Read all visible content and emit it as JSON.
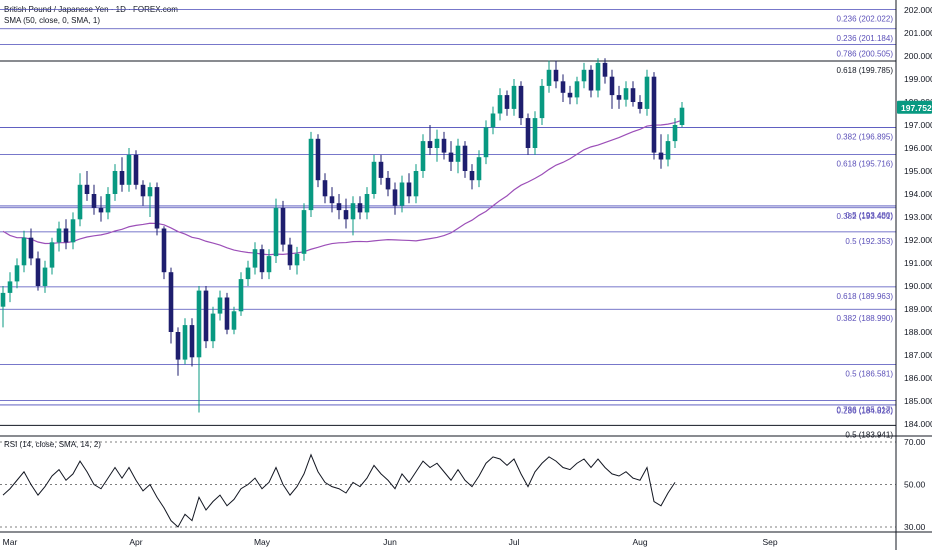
{
  "header": {
    "title": "British Pound / Japanese Yen · 1D · FOREX.com",
    "indicator": "SMA (50, close, 0, SMA, 1)",
    "rsi_label": "RSI (14, close, SMA, 14, 2)"
  },
  "colors": {
    "up": "#089981",
    "down": "#1e1e6e",
    "sma": "#9c4fb8",
    "fib_line": "#4a4ab8",
    "rsi": "#131722",
    "last_price_bg": "#089981",
    "axis_text": "#131722"
  },
  "chart_data": [
    {
      "type": "candlestick",
      "series": [
        {
          "name": "British Pound / Japanese Yen"
        }
      ],
      "price_axis": {
        "ticks": [
          "202.000",
          "201.000",
          "200.000",
          "199.000",
          "198.000",
          "197.000",
          "196.000",
          "195.000",
          "194.000",
          "193.000",
          "192.000",
          "191.000",
          "190.000",
          "189.000",
          "188.000",
          "187.000",
          "186.000",
          "185.000",
          "184.000"
        ],
        "ylim": [
          183.7,
          202.2
        ]
      },
      "time_axis": {
        "ticks": [
          "Mar",
          "Apr",
          "May",
          "Jun",
          "Jul",
          "Aug",
          "Sep"
        ]
      },
      "last_price": "197.752",
      "last_value": 197.752,
      "levels": [
        {
          "label": "0.236 (202.022)",
          "value": 202.022
        },
        {
          "label": "0.236 (201.184)",
          "value": 201.184
        },
        {
          "label": "0.786 (200.505)",
          "value": 200.505
        },
        {
          "label": "0.618 (199.785)",
          "value": 199.785,
          "dark": true
        },
        {
          "label": "0.382 (196.895)",
          "value": 196.895
        },
        {
          "label": "0.618 (195.716)",
          "value": 195.716
        },
        {
          "label": "0.5 (193.480)",
          "value": 193.48
        },
        {
          "label": "0.382 (193.401)",
          "value": 193.401
        },
        {
          "label": "0.5 (192.353)",
          "value": 192.353
        },
        {
          "label": "0.618 (189.963)",
          "value": 189.963
        },
        {
          "label": "0.382 (188.990)",
          "value": 188.99
        },
        {
          "label": "0.5 (186.581)",
          "value": 186.581
        },
        {
          "label": "0.786 (185.017)",
          "value": 185.017
        },
        {
          "label": "0.236 (184.828)",
          "value": 184.828
        },
        {
          "label": "0.5 (183.941)",
          "value": 183.941,
          "dark": true
        }
      ],
      "candles": [
        {
          "o": 189.1,
          "h": 190.0,
          "l": 188.2,
          "c": 189.7
        },
        {
          "o": 189.7,
          "h": 190.6,
          "l": 189.3,
          "c": 190.2
        },
        {
          "o": 190.2,
          "h": 191.2,
          "l": 189.9,
          "c": 190.9
        },
        {
          "o": 190.9,
          "h": 192.4,
          "l": 190.6,
          "c": 192.1
        },
        {
          "o": 192.1,
          "h": 192.5,
          "l": 190.9,
          "c": 191.2
        },
        {
          "o": 191.2,
          "h": 191.5,
          "l": 189.8,
          "c": 190.0
        },
        {
          "o": 190.0,
          "h": 191.1,
          "l": 189.7,
          "c": 190.8
        },
        {
          "o": 190.8,
          "h": 192.1,
          "l": 190.5,
          "c": 191.9
        },
        {
          "o": 191.9,
          "h": 192.8,
          "l": 191.5,
          "c": 192.5
        },
        {
          "o": 192.5,
          "h": 192.9,
          "l": 191.6,
          "c": 191.9
        },
        {
          "o": 191.9,
          "h": 193.2,
          "l": 191.6,
          "c": 192.9
        },
        {
          "o": 192.9,
          "h": 194.9,
          "l": 192.6,
          "c": 194.4
        },
        {
          "o": 194.4,
          "h": 195.0,
          "l": 193.7,
          "c": 194.0
        },
        {
          "o": 194.0,
          "h": 194.4,
          "l": 193.1,
          "c": 193.4
        },
        {
          "o": 193.4,
          "h": 193.9,
          "l": 192.8,
          "c": 193.2
        },
        {
          "o": 193.2,
          "h": 194.3,
          "l": 192.9,
          "c": 194.0
        },
        {
          "o": 194.0,
          "h": 195.3,
          "l": 193.7,
          "c": 195.0
        },
        {
          "o": 195.0,
          "h": 195.6,
          "l": 194.1,
          "c": 194.4
        },
        {
          "o": 194.4,
          "h": 196.0,
          "l": 194.1,
          "c": 195.7
        },
        {
          "o": 195.7,
          "h": 195.9,
          "l": 194.2,
          "c": 194.4
        },
        {
          "o": 194.4,
          "h": 194.6,
          "l": 193.5,
          "c": 193.9
        },
        {
          "o": 193.9,
          "h": 194.5,
          "l": 193.0,
          "c": 194.3
        },
        {
          "o": 194.3,
          "h": 194.5,
          "l": 192.2,
          "c": 192.5
        },
        {
          "o": 192.5,
          "h": 192.6,
          "l": 190.3,
          "c": 190.6
        },
        {
          "o": 190.6,
          "h": 190.8,
          "l": 187.5,
          "c": 188.0
        },
        {
          "o": 188.0,
          "h": 188.2,
          "l": 186.1,
          "c": 186.8
        },
        {
          "o": 186.8,
          "h": 188.6,
          "l": 186.6,
          "c": 188.3
        },
        {
          "o": 188.3,
          "h": 188.6,
          "l": 186.5,
          "c": 186.9
        },
        {
          "o": 186.9,
          "h": 190.0,
          "l": 184.5,
          "c": 189.8
        },
        {
          "o": 189.8,
          "h": 190.0,
          "l": 187.3,
          "c": 187.6
        },
        {
          "o": 187.6,
          "h": 189.1,
          "l": 187.3,
          "c": 188.8
        },
        {
          "o": 188.8,
          "h": 189.8,
          "l": 188.5,
          "c": 189.5
        },
        {
          "o": 189.5,
          "h": 189.7,
          "l": 187.9,
          "c": 188.1
        },
        {
          "o": 188.1,
          "h": 189.1,
          "l": 187.9,
          "c": 188.9
        },
        {
          "o": 188.9,
          "h": 190.6,
          "l": 188.7,
          "c": 190.3
        },
        {
          "o": 190.3,
          "h": 191.1,
          "l": 190.0,
          "c": 190.8
        },
        {
          "o": 190.8,
          "h": 191.9,
          "l": 190.5,
          "c": 191.6
        },
        {
          "o": 191.6,
          "h": 191.8,
          "l": 190.3,
          "c": 190.6
        },
        {
          "o": 190.6,
          "h": 191.6,
          "l": 190.3,
          "c": 191.3
        },
        {
          "o": 191.3,
          "h": 193.8,
          "l": 191.0,
          "c": 193.4
        },
        {
          "o": 193.4,
          "h": 193.7,
          "l": 191.5,
          "c": 191.8
        },
        {
          "o": 191.8,
          "h": 192.1,
          "l": 190.7,
          "c": 190.9
        },
        {
          "o": 190.9,
          "h": 191.7,
          "l": 190.5,
          "c": 191.4
        },
        {
          "o": 191.4,
          "h": 193.6,
          "l": 191.1,
          "c": 193.3
        },
        {
          "o": 193.3,
          "h": 196.7,
          "l": 193.0,
          "c": 196.4
        },
        {
          "o": 196.4,
          "h": 196.6,
          "l": 194.3,
          "c": 194.6
        },
        {
          "o": 194.6,
          "h": 194.9,
          "l": 193.6,
          "c": 193.9
        },
        {
          "o": 193.9,
          "h": 194.3,
          "l": 193.2,
          "c": 193.6
        },
        {
          "o": 193.6,
          "h": 194.0,
          "l": 192.9,
          "c": 193.3
        },
        {
          "o": 193.3,
          "h": 193.8,
          "l": 192.5,
          "c": 192.9
        },
        {
          "o": 192.9,
          "h": 193.9,
          "l": 192.2,
          "c": 193.6
        },
        {
          "o": 193.6,
          "h": 193.9,
          "l": 192.9,
          "c": 193.2
        },
        {
          "o": 193.2,
          "h": 194.3,
          "l": 192.9,
          "c": 194.0
        },
        {
          "o": 194.0,
          "h": 195.7,
          "l": 193.8,
          "c": 195.4
        },
        {
          "o": 195.4,
          "h": 195.7,
          "l": 194.4,
          "c": 194.7
        },
        {
          "o": 194.7,
          "h": 195.0,
          "l": 193.9,
          "c": 194.2
        },
        {
          "o": 194.2,
          "h": 194.5,
          "l": 193.1,
          "c": 193.5
        },
        {
          "o": 193.5,
          "h": 194.8,
          "l": 193.2,
          "c": 194.5
        },
        {
          "o": 194.5,
          "h": 194.9,
          "l": 193.6,
          "c": 193.9
        },
        {
          "o": 193.9,
          "h": 195.3,
          "l": 193.6,
          "c": 195.0
        },
        {
          "o": 195.0,
          "h": 196.6,
          "l": 194.7,
          "c": 196.3
        },
        {
          "o": 196.3,
          "h": 197.0,
          "l": 195.7,
          "c": 196.0
        },
        {
          "o": 196.0,
          "h": 196.8,
          "l": 195.4,
          "c": 196.4
        },
        {
          "o": 196.4,
          "h": 196.7,
          "l": 195.5,
          "c": 195.8
        },
        {
          "o": 195.8,
          "h": 196.3,
          "l": 195.0,
          "c": 195.4
        },
        {
          "o": 195.4,
          "h": 196.4,
          "l": 194.9,
          "c": 196.1
        },
        {
          "o": 196.1,
          "h": 196.3,
          "l": 194.7,
          "c": 195.0
        },
        {
          "o": 195.0,
          "h": 195.3,
          "l": 194.2,
          "c": 194.6
        },
        {
          "o": 194.6,
          "h": 195.9,
          "l": 194.3,
          "c": 195.6
        },
        {
          "o": 195.6,
          "h": 197.2,
          "l": 195.3,
          "c": 196.9
        },
        {
          "o": 196.9,
          "h": 197.8,
          "l": 196.6,
          "c": 197.5
        },
        {
          "o": 197.5,
          "h": 198.6,
          "l": 197.2,
          "c": 198.3
        },
        {
          "o": 198.3,
          "h": 198.5,
          "l": 197.4,
          "c": 197.7
        },
        {
          "o": 197.7,
          "h": 199.0,
          "l": 197.4,
          "c": 198.7
        },
        {
          "o": 198.7,
          "h": 198.9,
          "l": 197.0,
          "c": 197.3
        },
        {
          "o": 197.3,
          "h": 197.5,
          "l": 195.7,
          "c": 196.0
        },
        {
          "o": 196.0,
          "h": 197.6,
          "l": 195.7,
          "c": 197.3
        },
        {
          "o": 197.3,
          "h": 199.0,
          "l": 197.0,
          "c": 198.7
        },
        {
          "o": 198.7,
          "h": 199.8,
          "l": 198.4,
          "c": 199.4
        },
        {
          "o": 199.4,
          "h": 199.8,
          "l": 198.6,
          "c": 198.9
        },
        {
          "o": 198.9,
          "h": 199.2,
          "l": 198.0,
          "c": 198.4
        },
        {
          "o": 198.4,
          "h": 198.7,
          "l": 197.9,
          "c": 198.2
        },
        {
          "o": 198.2,
          "h": 199.1,
          "l": 197.9,
          "c": 198.9
        },
        {
          "o": 198.9,
          "h": 199.7,
          "l": 198.6,
          "c": 199.4
        },
        {
          "o": 199.4,
          "h": 199.6,
          "l": 198.2,
          "c": 198.5
        },
        {
          "o": 198.5,
          "h": 199.9,
          "l": 198.2,
          "c": 199.7
        },
        {
          "o": 199.7,
          "h": 199.9,
          "l": 198.8,
          "c": 199.1
        },
        {
          "o": 199.1,
          "h": 199.4,
          "l": 197.7,
          "c": 198.3
        },
        {
          "o": 198.3,
          "h": 198.7,
          "l": 197.7,
          "c": 198.1
        },
        {
          "o": 198.1,
          "h": 198.9,
          "l": 197.8,
          "c": 198.6
        },
        {
          "o": 198.6,
          "h": 198.9,
          "l": 197.8,
          "c": 198.0
        },
        {
          "o": 198.0,
          "h": 198.3,
          "l": 197.5,
          "c": 197.7
        },
        {
          "o": 197.7,
          "h": 199.4,
          "l": 197.4,
          "c": 199.1
        },
        {
          "o": 199.1,
          "h": 199.3,
          "l": 195.5,
          "c": 195.8
        },
        {
          "o": 195.8,
          "h": 196.6,
          "l": 195.1,
          "c": 195.5
        },
        {
          "o": 195.5,
          "h": 196.6,
          "l": 195.2,
          "c": 196.3
        },
        {
          "o": 196.3,
          "h": 197.3,
          "l": 196.0,
          "c": 197.0
        },
        {
          "o": 197.0,
          "h": 198.0,
          "l": 196.9,
          "c": 197.752
        }
      ],
      "sma_last": 197.1
    },
    {
      "type": "line",
      "series": [
        {
          "name": "RSI (14, close, SMA, 14, 2)"
        }
      ],
      "y_ticks": [
        "70.00",
        "50.00",
        "30.00"
      ],
      "ylim": [
        28,
        72
      ],
      "values": [
        45,
        48,
        52,
        56,
        50,
        45,
        49,
        54,
        57,
        52,
        55,
        61,
        56,
        50,
        48,
        53,
        58,
        53,
        58,
        52,
        47,
        50,
        44,
        39,
        33,
        30,
        36,
        33,
        44,
        38,
        42,
        45,
        40,
        43,
        48,
        50,
        53,
        48,
        51,
        58,
        50,
        45,
        49,
        55,
        64,
        56,
        51,
        49,
        48,
        46,
        51,
        49,
        53,
        59,
        55,
        52,
        48,
        55,
        51,
        56,
        61,
        58,
        60,
        56,
        52,
        57,
        52,
        49,
        54,
        60,
        63,
        62,
        59,
        62,
        55,
        49,
        56,
        60,
        63,
        61,
        58,
        57,
        60,
        62,
        58,
        62,
        58,
        55,
        54,
        56,
        53,
        52,
        58,
        42,
        40,
        46,
        51
      ]
    }
  ]
}
